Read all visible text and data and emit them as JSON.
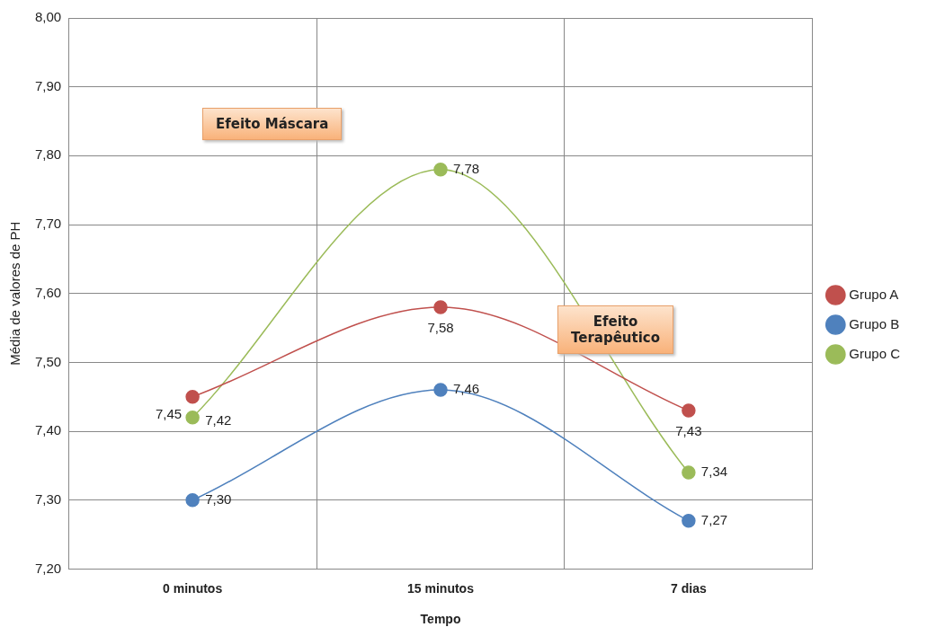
{
  "chart_data": {
    "type": "line",
    "ylabel": "Média de valores de PH",
    "xlabel": "Tempo",
    "categories": [
      "0 minutos",
      "15 minutos",
      "7 dias"
    ],
    "ylim": [
      7.2,
      8.0
    ],
    "yticks": [
      {
        "value": 7.2,
        "label": "7,20"
      },
      {
        "value": 7.3,
        "label": "7,30"
      },
      {
        "value": 7.4,
        "label": "7,40"
      },
      {
        "value": 7.5,
        "label": "7,50"
      },
      {
        "value": 7.6,
        "label": "7,60"
      },
      {
        "value": 7.7,
        "label": "7,70"
      },
      {
        "value": 7.8,
        "label": "7,80"
      },
      {
        "value": 7.9,
        "label": "7,90"
      },
      {
        "value": 8.0,
        "label": "8,00"
      }
    ],
    "series": [
      {
        "name": "Grupo A",
        "color": "#c0504d",
        "values": [
          7.45,
          7.58,
          7.43
        ],
        "value_labels": [
          "7,45",
          "7,58",
          "7,43"
        ]
      },
      {
        "name": "Grupo B",
        "color": "#4f81bd",
        "values": [
          7.3,
          7.46,
          7.27
        ],
        "value_labels": [
          "7,30",
          "7,46",
          "7,27"
        ]
      },
      {
        "name": "Grupo C",
        "color": "#9bbb59",
        "values": [
          7.42,
          7.78,
          7.34
        ],
        "value_labels": [
          "7,42",
          "7,78",
          "7,34"
        ]
      }
    ],
    "annotations": [
      "Efeito Máscara",
      "Efeito\nTerapêutico"
    ],
    "grid": true,
    "legend": "right",
    "marker": "circle",
    "line_style": "solid"
  }
}
